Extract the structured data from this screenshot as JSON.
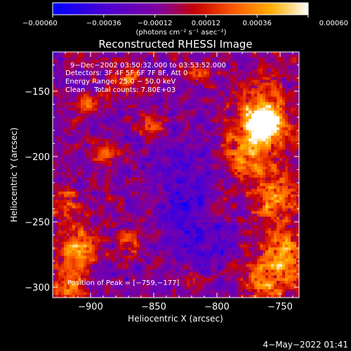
{
  "chart_data": {
    "type": "heatmap",
    "title": "Reconstructed RHESSI Image",
    "xlabel": "Heliocentric X (arcsec)",
    "ylabel": "Heliocentric Y (arcsec)",
    "xlim": [
      -930,
      -735
    ],
    "ylim": [
      -308,
      -120
    ],
    "x_ticks": [
      -900,
      -850,
      -800,
      -750
    ],
    "x_tick_labels": [
      "−900",
      "−850",
      "−800",
      "−750"
    ],
    "y_ticks": [
      -150,
      -200,
      -250,
      -300
    ],
    "y_tick_labels": [
      "−150",
      "−200",
      "−250",
      "−300"
    ],
    "colorbar": {
      "range": [
        -0.0006,
        0.0006
      ],
      "ticks": [
        -0.0006,
        -0.00036,
        -0.00012,
        0.00012,
        0.00036,
        0.0006
      ],
      "tick_labels": [
        "−0.00060",
        "−0.00036",
        "−0.00012",
        "0.00012",
        "0.00036",
        "0.00060"
      ],
      "unit_label": "(photons cm⁻² s⁻¹ asec⁻²)",
      "colors": [
        "#0000ff",
        "#5000d0",
        "#8000a0",
        "#c80000",
        "#ff6000",
        "#ffb000",
        "#ffffff"
      ]
    },
    "annotations": [
      "9−Dec−2002 03:50:32.000 to 03:53:52.000",
      "Detectors: 3F 4F 5F 6F 7F 8F, Att 0",
      "Energy Range: 25.0 − 50.0 keV",
      "Clean    Total counts: 7.80E+03"
    ],
    "peak_label": "Position of Peak = [−759,−177]",
    "peak_position": [
      -759,
      -177
    ]
  },
  "footer": {
    "timestamp": "4−May−2022 01:41"
  }
}
